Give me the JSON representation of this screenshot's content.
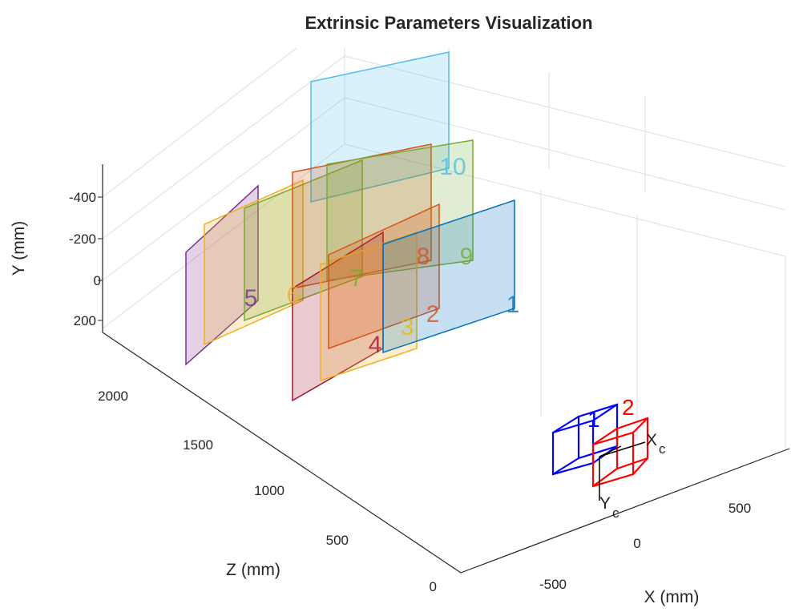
{
  "chart_data": {
    "type": "3d-extrinsics",
    "title": "Extrinsic Parameters Visualization",
    "xlabel": "X (mm)",
    "ylabel": "Y (mm)",
    "zlabel": "Z (mm)",
    "x_ticks": [
      "-500",
      "0",
      "500"
    ],
    "y_ticks": [
      "-400",
      "-200",
      "0",
      "200"
    ],
    "z_ticks": [
      "0",
      "500",
      "1000",
      "1500",
      "2000"
    ],
    "grid": true,
    "patterns": [
      {
        "index": "1",
        "color": "#0072BD"
      },
      {
        "index": "2",
        "color": "#D95319"
      },
      {
        "index": "3",
        "color": "#EDB120"
      },
      {
        "index": "4",
        "color": "#A2142F"
      },
      {
        "index": "5",
        "color": "#7E2F8E"
      },
      {
        "index": "6",
        "color": "#EDB120"
      },
      {
        "index": "7",
        "color": "#77AC30"
      },
      {
        "index": "8",
        "color": "#D95319"
      },
      {
        "index": "9",
        "color": "#77AC30"
      },
      {
        "index": "10",
        "color": "#4DBEEE"
      }
    ],
    "cameras": [
      {
        "label": "1",
        "color": "#0000FF"
      },
      {
        "label": "2",
        "color": "#FF0000"
      }
    ],
    "camera_axis_labels": {
      "x": "X",
      "x_sub": "c",
      "y": "Y",
      "y_sub": "c"
    }
  }
}
